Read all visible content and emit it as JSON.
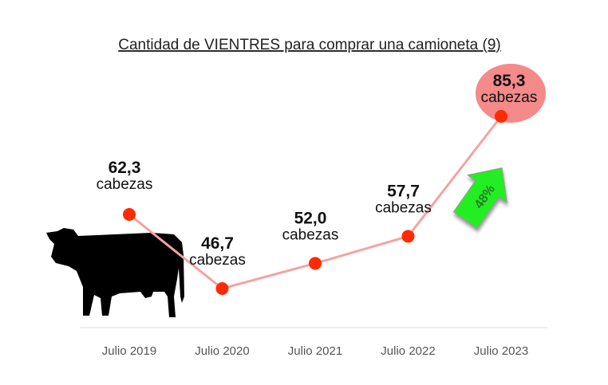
{
  "chart_data": {
    "type": "line",
    "title": "Cantidad de VIENTRES para comprar una camioneta (9)",
    "categories": [
      "Julio 2019",
      "Julio 2020",
      "Julio 2021",
      "Julio 2022",
      "Julio 2023"
    ],
    "values": [
      62.3,
      46.7,
      52.0,
      57.7,
      85.3
    ],
    "data_labels": [
      "62,3",
      "46,7",
      "52,0",
      "57,7",
      "85,3"
    ],
    "unit_label": "cabezas",
    "annotation": "48%",
    "xlabel": "",
    "ylabel": "",
    "grid": false,
    "colors": {
      "line": "#f4a3a3",
      "point": "#ff2a00",
      "highlight": "#f48a8a",
      "arrow": "#22ee22"
    }
  }
}
